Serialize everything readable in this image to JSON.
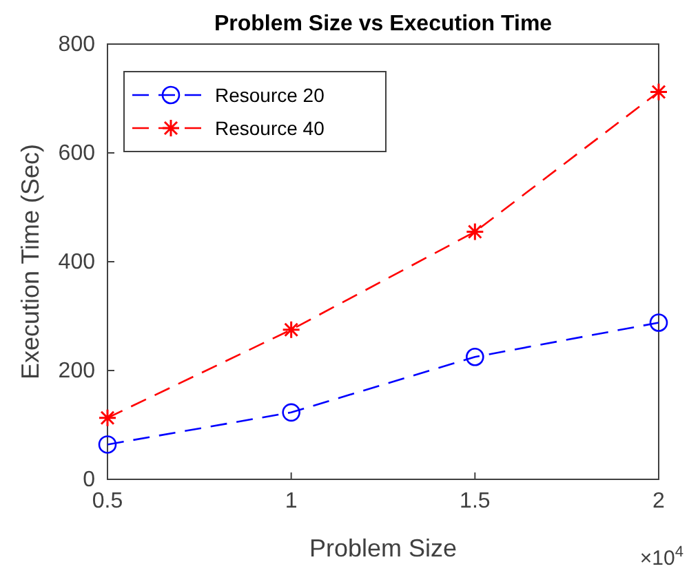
{
  "chart_data": {
    "type": "line",
    "title": "Problem Size vs Execution Time",
    "xlabel": "Problem Size",
    "ylabel": "Execution Time (Sec)",
    "x": [
      0.5,
      1,
      1.5,
      2
    ],
    "series": [
      {
        "name": "Resource 20",
        "color": "#0000ff",
        "marker": "circle",
        "values": [
          64,
          123,
          225,
          288
        ]
      },
      {
        "name": "Resource 40",
        "color": "#ff0000",
        "marker": "cross",
        "values": [
          113,
          275,
          455,
          712
        ]
      }
    ],
    "xlim": [
      0.5,
      2
    ],
    "xticks": [
      0.5,
      1,
      1.5,
      2
    ],
    "ylim": [
      0,
      800
    ],
    "yticks": [
      0,
      200,
      400,
      600,
      800
    ],
    "annotations": [
      "×10$^{4}$"
    ],
    "line_style": "dashed",
    "grid": false,
    "legend": "top left"
  }
}
